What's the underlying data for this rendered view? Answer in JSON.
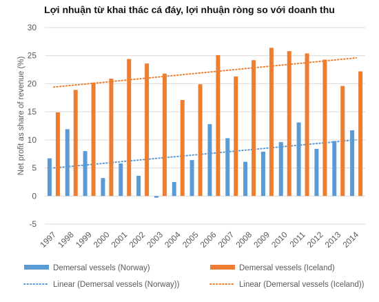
{
  "chart_data": {
    "type": "bar",
    "title": "Lợi nhuận từ khai thác cá đáy, lợi nhuận ròng so với doanh thu",
    "ylabel": "Net profit as share of revenue (%)",
    "xlabel": "",
    "categories": [
      "1997",
      "1998",
      "1999",
      "2000",
      "2001",
      "2002",
      "2003",
      "2004",
      "2005",
      "2006",
      "2007",
      "2008",
      "2009",
      "2010",
      "2011",
      "2012",
      "2013",
      "2014"
    ],
    "ylim": [
      -5,
      30
    ],
    "yticks": [
      "-5",
      "0",
      "5",
      "10",
      "15",
      "20",
      "25",
      "30"
    ],
    "grid": true,
    "legend_position": "bottom",
    "series": [
      {
        "name": "Demersal vessels (Norway)",
        "color": "#5b9bd5",
        "values": [
          6.7,
          11.9,
          8.0,
          3.2,
          5.8,
          3.6,
          -0.3,
          2.5,
          6.4,
          12.8,
          10.3,
          6.1,
          7.9,
          9.6,
          13.1,
          8.4,
          9.8,
          11.7
        ]
      },
      {
        "name": "Demersal vessels (Iceland)",
        "color": "#ed7d31",
        "values": [
          14.9,
          18.9,
          20.2,
          20.9,
          24.4,
          23.6,
          21.8,
          17.1,
          19.9,
          25.1,
          21.3,
          24.2,
          26.4,
          25.8,
          25.4,
          24.3,
          19.6,
          22.2
        ]
      }
    ],
    "trendlines": [
      {
        "name": "Linear (Demersal vessels (Norway))",
        "color": "#5b9bd5",
        "start": 5.0,
        "end": 10.0
      },
      {
        "name": "Linear (Demersal vessels (Iceland))",
        "color": "#ed7d31",
        "start": 19.4,
        "end": 24.6
      }
    ]
  }
}
